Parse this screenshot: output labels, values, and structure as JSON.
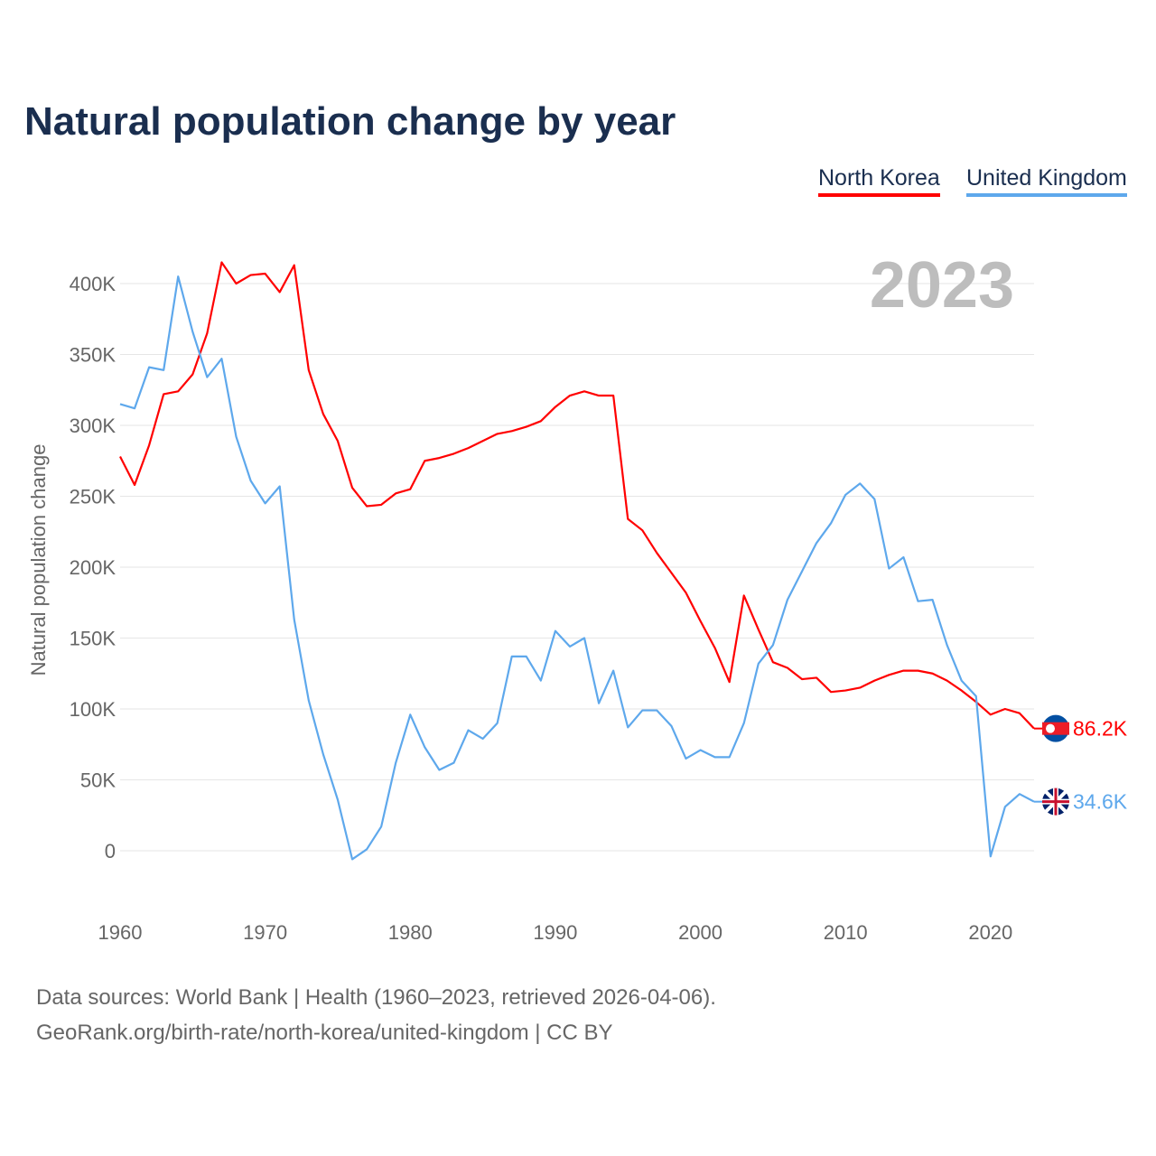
{
  "title": "Natural population change by year",
  "legend": [
    {
      "label": "North Korea",
      "color": "#ff0000"
    },
    {
      "label": "United Kingdom",
      "color": "#5ea8ec"
    }
  ],
  "footer": {
    "line1": "Data sources: World Bank | Health (1960–2023, retrieved 2026-04-06).",
    "line2": "GeoRank.org/birth-rate/north-korea/united-kingdom | CC BY"
  },
  "chart_data": {
    "type": "line",
    "title": "Natural population change by year",
    "ylabel": "Natural population change",
    "xlabel": "",
    "year_label": "2023",
    "ylim": [
      -55000,
      420000
    ],
    "xlim": [
      1960,
      2023
    ],
    "yticks": [
      0,
      50000,
      100000,
      150000,
      200000,
      250000,
      300000,
      350000,
      400000
    ],
    "ytick_labels": [
      "0",
      "50K",
      "100K",
      "150K",
      "200K",
      "250K",
      "300K",
      "350K",
      "400K"
    ],
    "xticks": [
      1960,
      1970,
      1980,
      1990,
      2000,
      2010,
      2020
    ],
    "xtick_labels": [
      "1960",
      "1970",
      "1980",
      "1990",
      "2000",
      "2010",
      "2020"
    ],
    "grid": true,
    "legend_position": "top-right",
    "x_start": 1960,
    "series": [
      {
        "name": "North Korea",
        "color": "#ff0000",
        "end_label": "86.2K",
        "flag": "north-korea-flag",
        "values": [
          278,
          258,
          286,
          322,
          324,
          336,
          365,
          415,
          400,
          406,
          407,
          394,
          413,
          339,
          308,
          289,
          256,
          243,
          244,
          252,
          255,
          275,
          277,
          280,
          284,
          289,
          294,
          296,
          299,
          303,
          313,
          321,
          324,
          321,
          321,
          234,
          226,
          210,
          196,
          182,
          162,
          143,
          119,
          180,
          156,
          133,
          129,
          121,
          122,
          112,
          113,
          115,
          120,
          124,
          127,
          127,
          125,
          120,
          113,
          105,
          96,
          100,
          97,
          86.2
        ]
      },
      {
        "name": "United Kingdom",
        "color": "#5ea8ec",
        "end_label": "34.6K",
        "flag": "united-kingdom-flag",
        "values": [
          315,
          312,
          341,
          339,
          405,
          366,
          334,
          347,
          292,
          261,
          245,
          257,
          163,
          106,
          68,
          36,
          -6,
          1,
          17,
          62,
          96,
          73,
          57,
          62,
          85,
          79,
          90,
          137,
          137,
          120,
          155,
          144,
          150,
          104,
          127,
          87,
          99,
          99,
          88,
          65,
          71,
          66,
          66,
          90,
          132,
          145,
          177,
          197,
          217,
          231,
          251,
          259,
          248,
          199,
          207,
          176,
          177,
          145,
          120,
          109,
          -4,
          31,
          40,
          34.6
        ]
      }
    ],
    "value_unit": "thousands"
  }
}
